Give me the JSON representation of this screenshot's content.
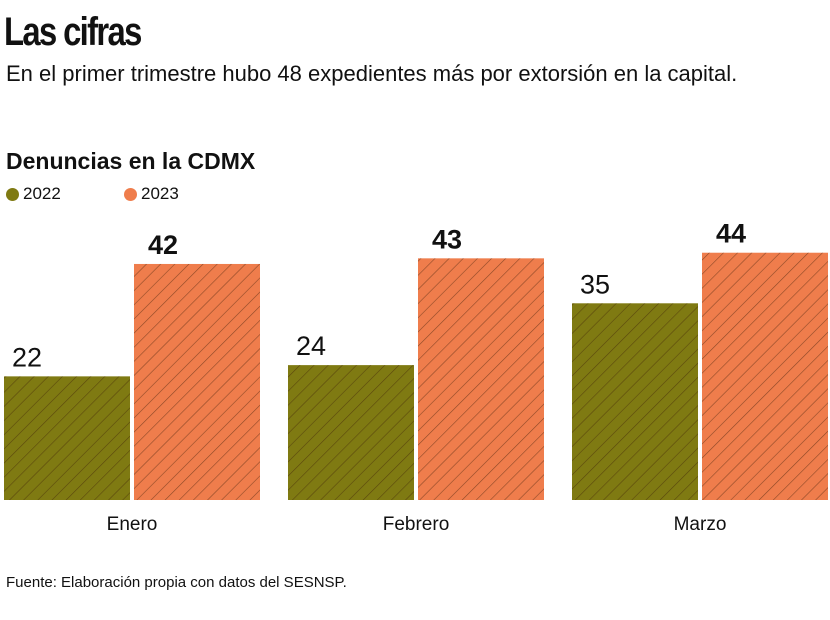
{
  "header": {
    "title": "Las cifras",
    "subtitle": "En el primer trimestre hubo 48 expedientes más por extorsión en la capital."
  },
  "chart_data": {
    "type": "bar",
    "title": "Denuncias en la CDMX",
    "categories": [
      "Enero",
      "Febrero",
      "Marzo"
    ],
    "series": [
      {
        "name": "2022",
        "values": [
          22,
          24,
          35
        ],
        "color": "#7f7a12"
      },
      {
        "name": "2023",
        "values": [
          42,
          43,
          44
        ],
        "color": "#ef7d4c"
      }
    ],
    "ylim": [
      0,
      45
    ],
    "grid": false,
    "legend": "top-left",
    "pattern": "diagonal-hatch"
  },
  "footer": {
    "source": "Fuente: Elaboración propia con datos del SESNSP."
  }
}
